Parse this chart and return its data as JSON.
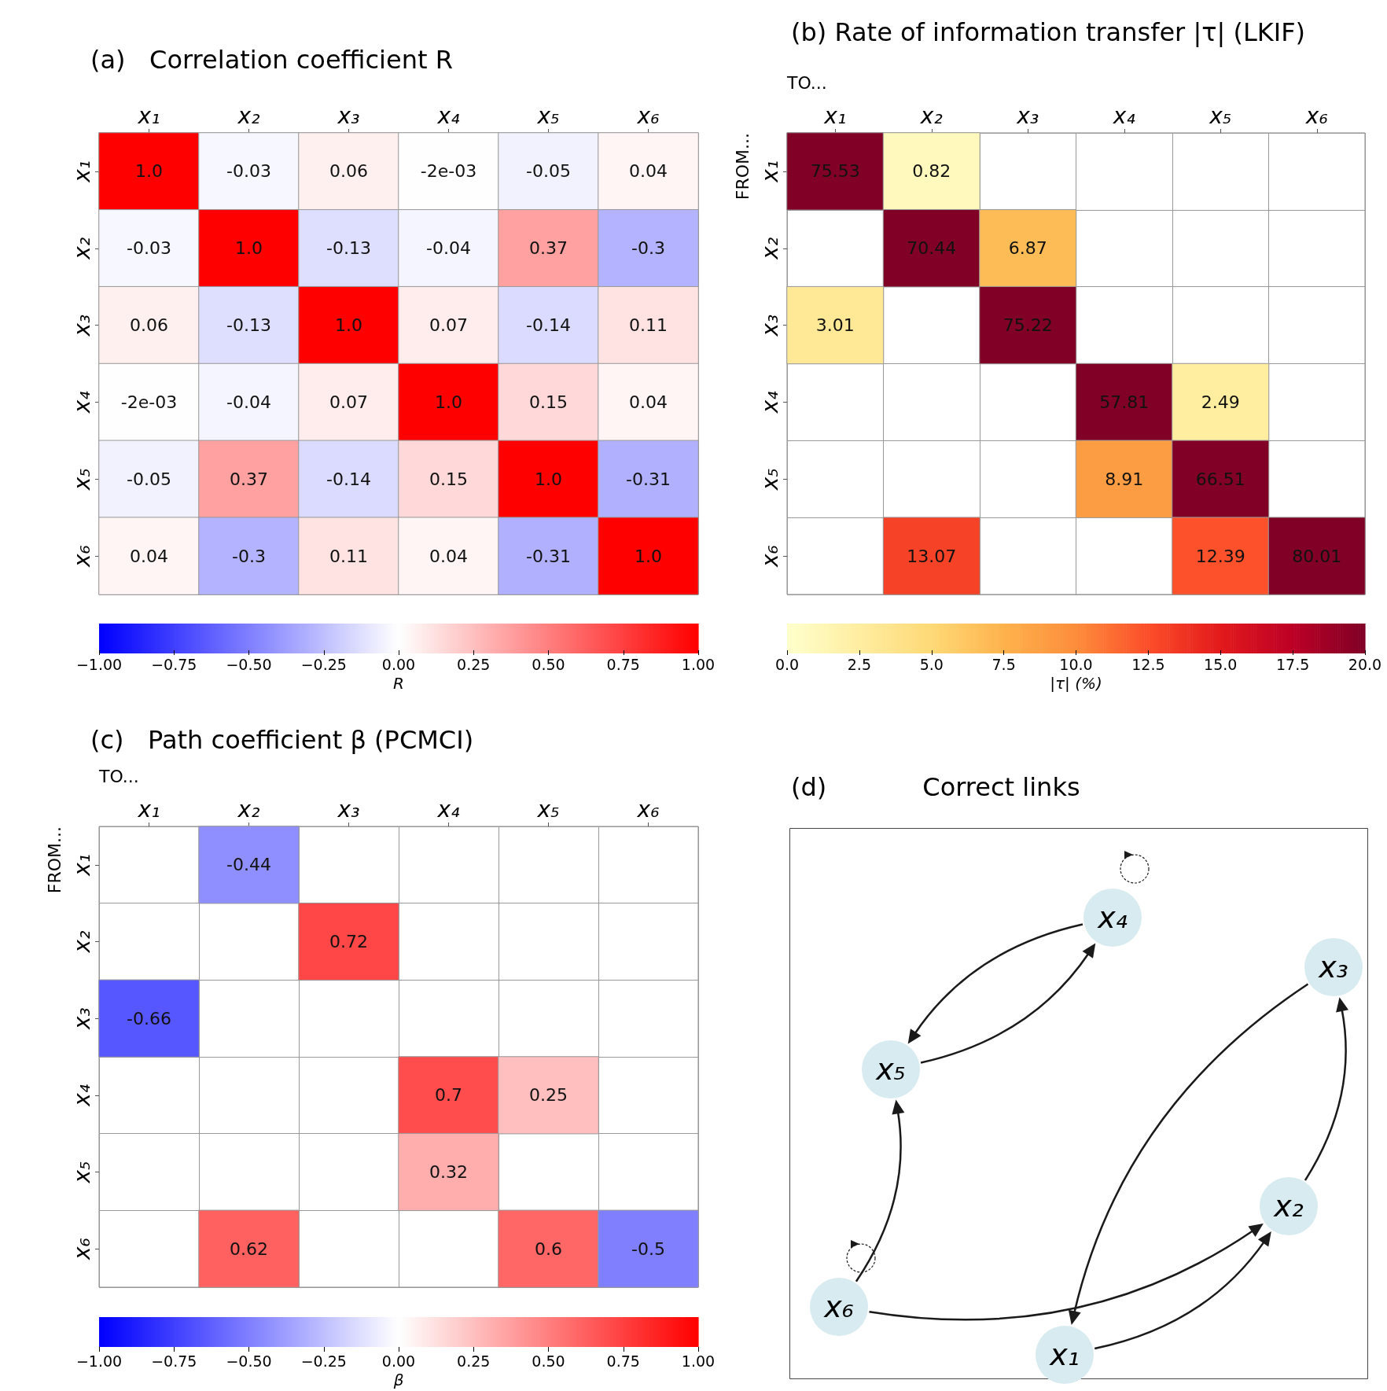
{
  "chart_data": [
    {
      "type": "heatmap",
      "title": "(a)   Correlation coefficient R",
      "clabel": "R",
      "categories": [
        "x₁",
        "x₂",
        "x₃",
        "x₄",
        "x₅",
        "x₆"
      ],
      "y_categories": [
        "x₁",
        "x₂",
        "x₃",
        "x₄",
        "x₅",
        "x₆"
      ],
      "cells": [
        [
          1,
          -0.03,
          0.06,
          -0.002,
          -0.05,
          0.04
        ],
        [
          -0.03,
          1,
          -0.13,
          -0.04,
          0.37,
          -0.3
        ],
        [
          0.06,
          -0.13,
          1,
          0.07,
          -0.14,
          0.11
        ],
        [
          -0.002,
          -0.04,
          0.07,
          1,
          0.15,
          0.04
        ],
        [
          -0.05,
          0.37,
          -0.14,
          0.15,
          1,
          -0.31
        ],
        [
          0.04,
          -0.3,
          0.11,
          0.04,
          -0.31,
          1
        ]
      ],
      "cell_labels": [
        [
          "1.0",
          "-0.03",
          "0.06",
          "-2e-03",
          "-0.05",
          "0.04"
        ],
        [
          "-0.03",
          "1.0",
          "-0.13",
          "-0.04",
          "0.37",
          "-0.3"
        ],
        [
          "0.06",
          "-0.13",
          "1.0",
          "0.07",
          "-0.14",
          "0.11"
        ],
        [
          "-2e-03",
          "-0.04",
          "0.07",
          "1.0",
          "0.15",
          "0.04"
        ],
        [
          "-0.05",
          "0.37",
          "-0.14",
          "0.15",
          "1.0",
          "-0.31"
        ],
        [
          "0.04",
          "-0.3",
          "0.11",
          "0.04",
          "-0.31",
          "1.0"
        ]
      ],
      "clim": [
        -1,
        1
      ],
      "cticks": [
        {
          "value": -1,
          "label": "−1.00"
        },
        {
          "value": -0.75,
          "label": "−0.75"
        },
        {
          "value": -0.5,
          "label": "−0.50"
        },
        {
          "value": -0.25,
          "label": "−0.25"
        },
        {
          "value": 0,
          "label": "0.00"
        },
        {
          "value": 0.25,
          "label": "0.25"
        },
        {
          "value": 0.5,
          "label": "0.50"
        },
        {
          "value": 0.75,
          "label": "0.75"
        },
        {
          "value": 1,
          "label": "1.00"
        }
      ]
    },
    {
      "type": "heatmap",
      "title": "(b) Rate of information transfer |τ| (LKIF)",
      "clabel": "|τ| (%)",
      "xlabel": "TO...",
      "ylabel": "FROM...",
      "data_labels": true,
      "categories": [
        "x₁",
        "x₂",
        "x₃",
        "x₄",
        "x₅",
        "x₆"
      ],
      "y_categories": [
        "x₁",
        "x₂",
        "x₃",
        "x₄",
        "x₅",
        "x₆"
      ],
      "cells": [
        [
          75.53,
          0.82,
          null,
          null,
          null,
          null
        ],
        [
          null,
          70.44,
          6.87,
          null,
          null,
          null
        ],
        [
          3.01,
          null,
          75.22,
          null,
          null,
          null
        ],
        [
          null,
          null,
          null,
          57.81,
          2.49,
          null
        ],
        [
          null,
          null,
          null,
          8.91,
          66.51,
          null
        ],
        [
          null,
          13.07,
          null,
          null,
          12.39,
          80.01
        ]
      ],
      "clim": [
        0,
        20
      ],
      "cticks": [
        {
          "value": 0,
          "label": "0.0"
        },
        {
          "value": 2.5,
          "label": "2.5"
        },
        {
          "value": 5,
          "label": "5.0"
        },
        {
          "value": 7.5,
          "label": "7.5"
        },
        {
          "value": 10,
          "label": "10.0"
        },
        {
          "value": 12.5,
          "label": "12.5"
        },
        {
          "value": 15,
          "label": "15.0"
        },
        {
          "value": 17.5,
          "label": "17.5"
        },
        {
          "value": 20,
          "label": "20.0"
        }
      ]
    },
    {
      "type": "heatmap",
      "title": "(c)   Path coefficient β (PCMCI)",
      "clabel": "β",
      "xlabel": "TO...",
      "ylabel": "FROM...",
      "data_labels": true,
      "categories": [
        "x₁",
        "x₂",
        "x₃",
        "x₄",
        "x₅",
        "x₆"
      ],
      "y_categories": [
        "x₁",
        "x₂",
        "x₃",
        "x₄",
        "x₅",
        "x₆"
      ],
      "cells": [
        [
          null,
          -0.44,
          null,
          null,
          null,
          null
        ],
        [
          null,
          null,
          0.72,
          null,
          null,
          null
        ],
        [
          -0.66,
          null,
          null,
          null,
          null,
          null
        ],
        [
          null,
          null,
          null,
          0.7,
          0.25,
          null
        ],
        [
          null,
          null,
          null,
          0.32,
          null,
          null
        ],
        [
          null,
          0.62,
          null,
          null,
          0.6,
          -0.5
        ]
      ],
      "clim": [
        -1,
        1
      ],
      "cticks": [
        {
          "value": -1,
          "label": "−1.00"
        },
        {
          "value": -0.75,
          "label": "−0.75"
        },
        {
          "value": -0.5,
          "label": "−0.50"
        },
        {
          "value": -0.25,
          "label": "−0.25"
        },
        {
          "value": 0,
          "label": "0.00"
        },
        {
          "value": 0.25,
          "label": "0.25"
        },
        {
          "value": 0.5,
          "label": "0.50"
        },
        {
          "value": 0.75,
          "label": "0.75"
        },
        {
          "value": 1,
          "label": "1.00"
        }
      ]
    },
    {
      "type": "other",
      "title": "(d)            Correct links",
      "categories": [
        "x₁",
        "x₂",
        "x₃",
        "x₄",
        "x₅",
        "x₆"
      ]
    }
  ]
}
